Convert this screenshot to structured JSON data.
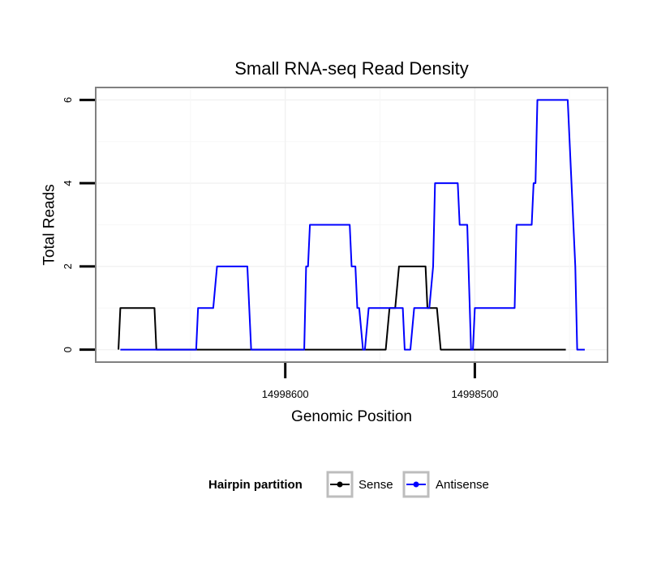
{
  "chart_data": {
    "type": "line",
    "title": "Small RNA-seq Read Density",
    "xlabel": "Genomic Position",
    "ylabel": "Total Reads",
    "x_reversed": true,
    "xlim": [
      14998700,
      14998430
    ],
    "ylim": [
      -0.3,
      6.3
    ],
    "x_ticks": [
      {
        "value": 14998600,
        "label": "14998600"
      },
      {
        "value": 14998500,
        "label": "14998500"
      }
    ],
    "y_ticks": [
      {
        "value": 0,
        "label": "0"
      },
      {
        "value": 2,
        "label": "2"
      },
      {
        "value": 4,
        "label": "4"
      },
      {
        "value": 6,
        "label": "6"
      }
    ],
    "grid": true,
    "legend": {
      "title": "Hairpin partition",
      "placement": "bottom"
    },
    "series": [
      {
        "name": "Sense",
        "color": "#000000",
        "points": [
          [
            14998688,
            0
          ],
          [
            14998687,
            1
          ],
          [
            14998669,
            1
          ],
          [
            14998668,
            0
          ],
          [
            14998548,
            0
          ],
          [
            14998547,
            0
          ],
          [
            14998545,
            1
          ],
          [
            14998542,
            1
          ],
          [
            14998540,
            2
          ],
          [
            14998526,
            2
          ],
          [
            14998525,
            1
          ],
          [
            14998520,
            1
          ],
          [
            14998518,
            0
          ],
          [
            14998452,
            0
          ]
        ]
      },
      {
        "name": "Antisense",
        "color": "#0000ff",
        "points": [
          [
            14998687,
            0
          ],
          [
            14998668,
            0
          ],
          [
            14998647,
            0
          ],
          [
            14998646,
            1
          ],
          [
            14998638,
            1
          ],
          [
            14998636,
            2
          ],
          [
            14998620,
            2
          ],
          [
            14998618,
            0
          ],
          [
            14998590,
            0
          ],
          [
            14998589,
            2
          ],
          [
            14998588,
            2
          ],
          [
            14998587,
            3
          ],
          [
            14998566,
            3
          ],
          [
            14998565,
            2
          ],
          [
            14998563,
            2
          ],
          [
            14998562,
            1
          ],
          [
            14998561,
            1
          ],
          [
            14998559,
            0
          ],
          [
            14998558,
            0
          ],
          [
            14998556,
            1
          ],
          [
            14998538,
            1
          ],
          [
            14998537,
            0
          ],
          [
            14998534,
            0
          ],
          [
            14998532,
            1
          ],
          [
            14998524,
            1
          ],
          [
            14998522,
            2
          ],
          [
            14998521,
            4
          ],
          [
            14998509,
            4
          ],
          [
            14998508,
            3
          ],
          [
            14998504,
            3
          ],
          [
            14998502,
            0
          ],
          [
            14998501,
            0
          ],
          [
            14998500,
            1
          ],
          [
            14998479,
            1
          ],
          [
            14998478,
            3
          ],
          [
            14998470,
            3
          ],
          [
            14998469,
            4
          ],
          [
            14998468,
            4
          ],
          [
            14998467,
            6
          ],
          [
            14998451,
            6
          ],
          [
            14998450,
            5
          ],
          [
            14998448,
            3
          ],
          [
            14998447,
            2
          ],
          [
            14998446,
            0
          ],
          [
            14998442,
            0
          ]
        ]
      }
    ]
  }
}
